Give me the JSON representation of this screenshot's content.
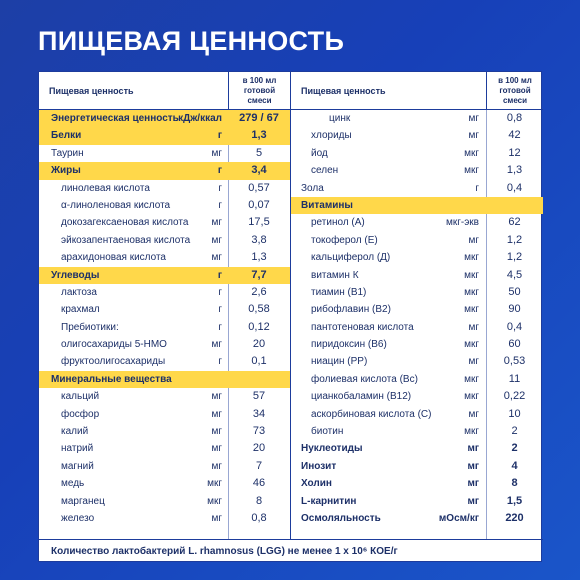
{
  "title": "ПИЩЕВАЯ ЦЕННОСТЬ",
  "header": {
    "label": "Пищевая ценность",
    "unit_line1": "в 100 мл",
    "unit_line2": "готовой",
    "unit_line3": "смеси"
  },
  "left_rows": [
    {
      "name": "Энергетическая ценность",
      "unit": "кДж/ккал",
      "value": "279 / 67",
      "style": "hl"
    },
    {
      "name": "Белки",
      "unit": "г",
      "value": "1,3",
      "style": "hl"
    },
    {
      "name": "Таурин",
      "unit": "мг",
      "value": "5",
      "style": ""
    },
    {
      "name": "Жиры",
      "unit": "г",
      "value": "3,4",
      "style": "hl"
    },
    {
      "name": "линолевая кислота",
      "unit": "г",
      "value": "0,57",
      "style": "ind"
    },
    {
      "name": "α-линоленовая кислота",
      "unit": "г",
      "value": "0,07",
      "style": "ind"
    },
    {
      "name": "докозагексаеновая кислота",
      "unit": "мг",
      "value": "17,5",
      "style": "ind"
    },
    {
      "name": "эйкозапентаеновая кислота",
      "unit": "мг",
      "value": "3,8",
      "style": "ind"
    },
    {
      "name": "арахидоновая кислота",
      "unit": "мг",
      "value": "1,3",
      "style": "ind"
    },
    {
      "name": "Углеводы",
      "unit": "г",
      "value": "7,7",
      "style": "hl"
    },
    {
      "name": "лактоза",
      "unit": "г",
      "value": "2,6",
      "style": "ind"
    },
    {
      "name": "крахмал",
      "unit": "г",
      "value": "0,58",
      "style": "ind"
    },
    {
      "name": "Пребиотики:",
      "unit": "г",
      "value": "0,12",
      "style": "ind"
    },
    {
      "name": "олигосахариды 5-НМО",
      "unit": "мг",
      "value": "20",
      "style": "ind"
    },
    {
      "name": "фруктоолигосахариды",
      "unit": "г",
      "value": "0,1",
      "style": "ind"
    },
    {
      "name": "Минеральные вещества",
      "unit": "",
      "value": "",
      "style": "hl"
    },
    {
      "name": "кальций",
      "unit": "мг",
      "value": "57",
      "style": "ind"
    },
    {
      "name": "фосфор",
      "unit": "мг",
      "value": "34",
      "style": "ind"
    },
    {
      "name": "калий",
      "unit": "мг",
      "value": "73",
      "style": "ind"
    },
    {
      "name": "натрий",
      "unit": "мг",
      "value": "20",
      "style": "ind"
    },
    {
      "name": "магний",
      "unit": "мг",
      "value": "7",
      "style": "ind"
    },
    {
      "name": "медь",
      "unit": "мкг",
      "value": "46",
      "style": "ind"
    },
    {
      "name": "марганец",
      "unit": "мкг",
      "value": "8",
      "style": "ind"
    },
    {
      "name": "железо",
      "unit": "мг",
      "value": "0,8",
      "style": "ind"
    }
  ],
  "right_rows": [
    {
      "name": "цинк",
      "unit": "мг",
      "value": "0,8",
      "style": "ind2"
    },
    {
      "name": "хлориды",
      "unit": "мг",
      "value": "42",
      "style": "ind"
    },
    {
      "name": "йод",
      "unit": "мкг",
      "value": "12",
      "style": "ind"
    },
    {
      "name": "селен",
      "unit": "мкг",
      "value": "1,3",
      "style": "ind"
    },
    {
      "name": "Зола",
      "unit": "г",
      "value": "0,4",
      "style": ""
    },
    {
      "name": "Витамины",
      "unit": "",
      "value": "",
      "style": "hl"
    },
    {
      "name": "ретинол (А)",
      "unit": "мкг-экв",
      "value": "62",
      "style": "ind"
    },
    {
      "name": "токоферол (Е)",
      "unit": "мг",
      "value": "1,2",
      "style": "ind"
    },
    {
      "name": "кальциферол (Д)",
      "unit": "мкг",
      "value": "1,2",
      "style": "ind"
    },
    {
      "name": "витамин К",
      "unit": "мкг",
      "value": "4,5",
      "style": "ind"
    },
    {
      "name": "тиамин (В1)",
      "unit": "мкг",
      "value": "50",
      "style": "ind"
    },
    {
      "name": "рибофлавин (В2)",
      "unit": "мкг",
      "value": "90",
      "style": "ind"
    },
    {
      "name": "пантотеновая кислота",
      "unit": "мг",
      "value": "0,4",
      "style": "ind"
    },
    {
      "name": "пиридоксин (В6)",
      "unit": "мкг",
      "value": "60",
      "style": "ind"
    },
    {
      "name": "ниацин (РР)",
      "unit": "мг",
      "value": "0,53",
      "style": "ind"
    },
    {
      "name": "фолиевая кислота (Вс)",
      "unit": "мкг",
      "value": "11",
      "style": "ind"
    },
    {
      "name": "цианкобаламин (В12)",
      "unit": "мкг",
      "value": "0,22",
      "style": "ind"
    },
    {
      "name": "аскорбиновая кислота (С)",
      "unit": "мг",
      "value": "10",
      "style": "ind"
    },
    {
      "name": "биотин",
      "unit": "мкг",
      "value": "2",
      "style": "ind"
    },
    {
      "name": "Нуклеотиды",
      "unit": "мг",
      "value": "2",
      "style": "bold"
    },
    {
      "name": "Инозит",
      "unit": "мг",
      "value": "4",
      "style": "bold"
    },
    {
      "name": "Холин",
      "unit": "мг",
      "value": "8",
      "style": "bold"
    },
    {
      "name": "L-карнитин",
      "unit": "мг",
      "value": "1,5",
      "style": "bold"
    },
    {
      "name": "Осмоляльность",
      "unit": "мОсм/кг",
      "value": "220",
      "style": "bold"
    }
  ],
  "footer": "Количество лактобактерий L. rhamnosus (LGG) не менее 1 x 10⁶ КОЕ/г"
}
